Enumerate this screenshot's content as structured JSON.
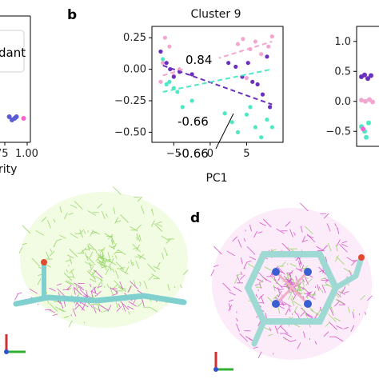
{
  "figure": {
    "panel_labels": [
      "b",
      "d"
    ],
    "leg_text": "dant",
    "left_xlabel": "rity",
    "left_ticks": [
      "75",
      "1.00"
    ]
  },
  "chart_data": [
    {
      "type": "scatter",
      "title": "",
      "xlabel": "rity",
      "xticks": [
        "75",
        "1.00"
      ],
      "legend_text": "dant",
      "series": [
        {
          "color": "#5b5bd6",
          "points": [
            [
              0.8,
              0.02
            ],
            [
              0.83,
              0.0
            ],
            [
              0.86,
              0.01
            ],
            [
              0.88,
              0.02
            ]
          ]
        },
        {
          "color": "#ff5fd2",
          "points": [
            [
              0.96,
              0.01
            ]
          ]
        }
      ]
    },
    {
      "type": "scatter",
      "title": "Cluster 9",
      "xlabel": "PC1",
      "ylabel": "",
      "xlim": [
        -8,
        10
      ],
      "ylim": [
        -0.58,
        0.34
      ],
      "xticks": [
        -5,
        0,
        5
      ],
      "yticks": [
        0.25,
        0.0,
        -0.25,
        -0.5
      ],
      "series": [
        {
          "color": "#f3a6cf",
          "points": [
            [
              -6.2,
              0.25
            ],
            [
              -5.6,
              0.18
            ],
            [
              -6.5,
              0.05
            ],
            [
              -5.0,
              -0.05
            ],
            [
              -4.2,
              0.0
            ],
            [
              -3.5,
              0.06
            ],
            [
              -6.8,
              -0.1
            ],
            [
              3.8,
              0.2
            ],
            [
              4.5,
              0.24
            ],
            [
              5.5,
              0.16
            ],
            [
              6.2,
              0.22
            ],
            [
              7.0,
              0.12
            ],
            [
              8.0,
              0.18
            ],
            [
              5.0,
              -0.07
            ],
            [
              -2.5,
              0.02
            ],
            [
              8.5,
              0.26
            ]
          ]
        },
        {
          "color": "#6b2fbf",
          "points": [
            [
              -6.8,
              0.14
            ],
            [
              -6.0,
              0.05
            ],
            [
              -5.5,
              0.0
            ],
            [
              -5.0,
              -0.06
            ],
            [
              -4.2,
              -0.02
            ],
            [
              -3.5,
              0.04
            ],
            [
              -2.5,
              -0.04
            ],
            [
              3.5,
              0.02
            ],
            [
              4.4,
              -0.06
            ],
            [
              5.2,
              0.05
            ],
            [
              5.8,
              -0.1
            ],
            [
              6.5,
              -0.12
            ],
            [
              7.2,
              -0.2
            ],
            [
              8.2,
              -0.3
            ],
            [
              7.8,
              0.1
            ],
            [
              2.5,
              0.05
            ]
          ]
        },
        {
          "color": "#4fe8c4",
          "points": [
            [
              -6.5,
              0.08
            ],
            [
              -6.0,
              -0.12
            ],
            [
              -5.6,
              -0.1
            ],
            [
              -5.0,
              -0.15
            ],
            [
              -4.5,
              -0.18
            ],
            [
              -3.8,
              -0.3
            ],
            [
              -2.5,
              -0.25
            ],
            [
              3.0,
              -0.42
            ],
            [
              3.8,
              -0.5
            ],
            [
              5.0,
              -0.36
            ],
            [
              5.5,
              -0.3
            ],
            [
              6.2,
              -0.46
            ],
            [
              7.0,
              -0.54
            ],
            [
              7.8,
              -0.4
            ],
            [
              2.0,
              -0.35
            ],
            [
              8.5,
              -0.46
            ]
          ]
        }
      ],
      "trendlines": [
        {
          "color": "#f3a6cf",
          "from": [
            -6.5,
            -0.05
          ],
          "to": [
            8.5,
            0.22
          ]
        },
        {
          "color": "#6b2fbf",
          "from": [
            -6.5,
            0.03
          ],
          "to": [
            8.5,
            -0.28
          ]
        },
        {
          "color": "#4fe8c4",
          "from": [
            -6.5,
            -0.18
          ],
          "to": [
            8.5,
            0.0
          ]
        }
      ],
      "annotations": [
        "0.84",
        "-0.66",
        "-0.66"
      ]
    },
    {
      "type": "scatter",
      "title": "",
      "xlabel": "",
      "yticks": [
        1.0,
        0.5,
        0.0,
        -0.5
      ],
      "ylim": [
        -0.75,
        1.25
      ],
      "series": [
        {
          "color": "#6b2fbf",
          "points": [
            [
              0.1,
              0.41
            ],
            [
              0.3,
              0.44
            ],
            [
              0.5,
              0.38
            ],
            [
              0.7,
              0.43
            ]
          ]
        },
        {
          "color": "#f3a6cf",
          "points": [
            [
              0.1,
              0.02
            ],
            [
              0.35,
              0.0
            ],
            [
              0.6,
              0.03
            ],
            [
              0.8,
              -0.01
            ]
          ]
        },
        {
          "color": "#4fe8c4",
          "points": [
            [
              0.1,
              -0.42
            ],
            [
              0.3,
              -0.5
            ],
            [
              0.55,
              -0.36
            ],
            [
              0.4,
              -0.6
            ]
          ]
        },
        {
          "color": "#ff5fd2",
          "points": [
            [
              0.2,
              -0.46
            ]
          ]
        }
      ]
    }
  ]
}
